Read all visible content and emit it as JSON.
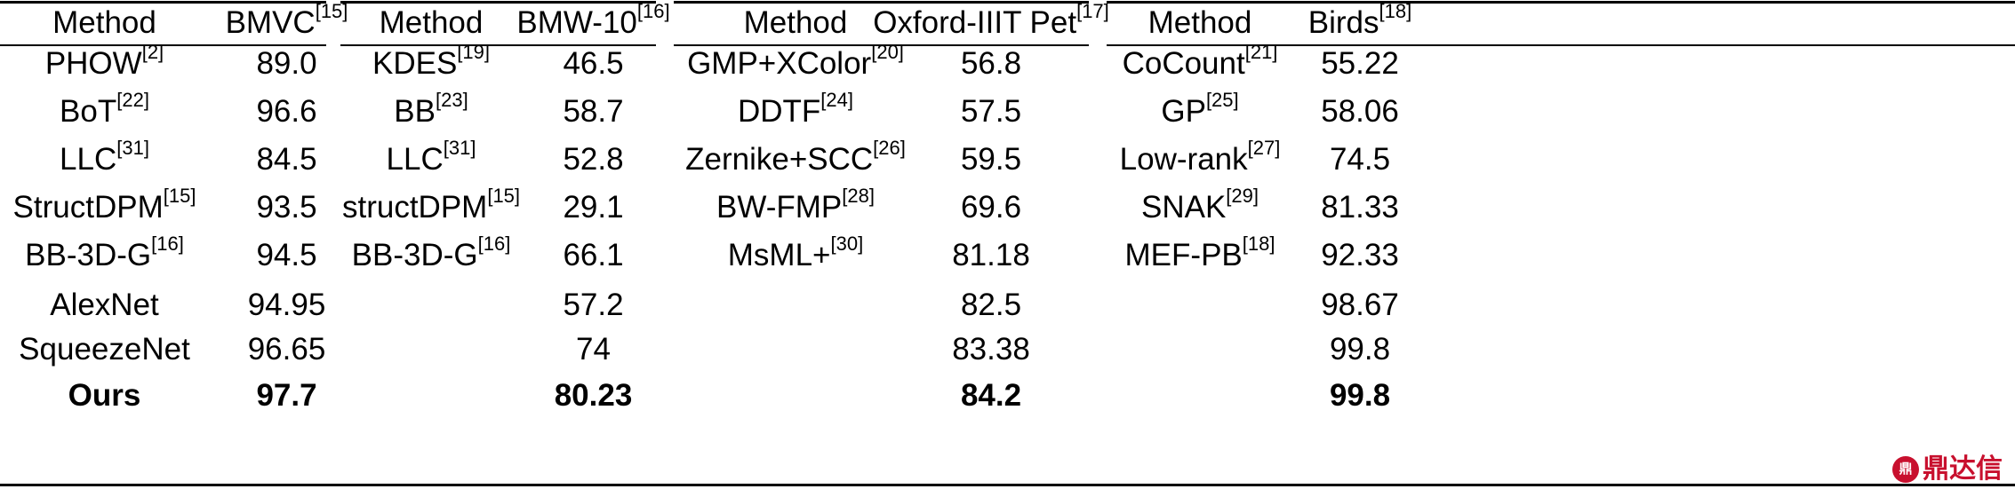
{
  "table": {
    "groups": [
      {
        "method_header": "Method",
        "dataset_header": "BMVC",
        "dataset_ref": "[15]",
        "rows": [
          {
            "method": "PHOW",
            "ref": "[2]",
            "value": "89.0"
          },
          {
            "method": "BoT",
            "ref": "[22]",
            "value": "96.6"
          },
          {
            "method": "LLC",
            "ref": "[31]",
            "value": "84.5"
          },
          {
            "method": "StructDPM",
            "ref": "[15]",
            "value": "93.5"
          },
          {
            "method": "BB-3D-G",
            "ref": "[16]",
            "value": "94.5"
          },
          {
            "method": "AlexNet",
            "ref": "",
            "value": "94.95"
          },
          {
            "method": "SqueezeNet",
            "ref": "",
            "value": "96.65"
          },
          {
            "method": "Ours",
            "ref": "",
            "value": "97.7"
          }
        ]
      },
      {
        "method_header": "Method",
        "dataset_header": "BMW-10",
        "dataset_ref": "[16]",
        "rows": [
          {
            "method": "KDES",
            "ref": "[19]",
            "value": "46.5"
          },
          {
            "method": "BB",
            "ref": "[23]",
            "value": "58.7"
          },
          {
            "method": "LLC",
            "ref": "[31]",
            "value": "52.8"
          },
          {
            "method": "structDPM",
            "ref": "[15]",
            "value": "29.1"
          },
          {
            "method": "BB-3D-G",
            "ref": "[16]",
            "value": "66.1"
          },
          {
            "method": "",
            "ref": "",
            "value": "57.2"
          },
          {
            "method": "",
            "ref": "",
            "value": "74"
          },
          {
            "method": "",
            "ref": "",
            "value": "80.23"
          }
        ]
      },
      {
        "method_header": "Method",
        "dataset_header": "Oxford-IIIT Pet",
        "dataset_ref": "[17]",
        "rows": [
          {
            "method": "GMP+XColor",
            "ref": "[20]",
            "value": "56.8"
          },
          {
            "method": "DDTF",
            "ref": "[24]",
            "value": "57.5"
          },
          {
            "method": "Zernike+SCC",
            "ref": "[26]",
            "value": "59.5"
          },
          {
            "method": "BW-FMP",
            "ref": "[28]",
            "value": "69.6"
          },
          {
            "method": "MsML+",
            "ref": "[30]",
            "value": "81.18"
          },
          {
            "method": "",
            "ref": "",
            "value": "82.5"
          },
          {
            "method": "",
            "ref": "",
            "value": "83.38"
          },
          {
            "method": "",
            "ref": "",
            "value": "84.2"
          }
        ]
      },
      {
        "method_header": "Method",
        "dataset_header": "Birds",
        "dataset_ref": "[18]",
        "rows": [
          {
            "method": "CoCount",
            "ref": "[21]",
            "value": "55.22"
          },
          {
            "method": "GP",
            "ref": "[25]",
            "value": "58.06"
          },
          {
            "method": "Low-rank",
            "ref": "[27]",
            "value": "74.5"
          },
          {
            "method": "SNAK",
            "ref": "[29]",
            "value": "81.33"
          },
          {
            "method": "MEF-PB",
            "ref": "[18]",
            "value": "92.33"
          },
          {
            "method": "",
            "ref": "",
            "value": "98.67"
          },
          {
            "method": "",
            "ref": "",
            "value": "99.8"
          },
          {
            "method": "",
            "ref": "",
            "value": "99.8"
          }
        ]
      }
    ]
  },
  "watermark": {
    "logo_text": "鼎",
    "text": "鼎达信"
  }
}
